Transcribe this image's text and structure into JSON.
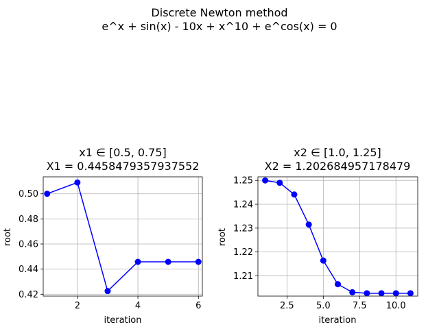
{
  "figure": {
    "suptitle_line1": "Discrete Newton method",
    "suptitle_line2": "e^x + sin(x) - 10x + x^10 + e^cos(x) = 0"
  },
  "chart_data": [
    {
      "type": "line",
      "title_line1": "x1 ∈ [0.5, 0.75]",
      "title_line2": "X1 = 0.4458479357937552",
      "xlabel": "iteration",
      "ylabel": "root",
      "xlim": [
        0.87,
        6.13
      ],
      "ylim": [
        0.4185,
        0.5135
      ],
      "xticks": [
        2,
        4,
        6
      ],
      "xtick_labels": [
        "2",
        "4",
        "6"
      ],
      "yticks": [
        0.42,
        0.44,
        0.46,
        0.48,
        0.5
      ],
      "ytick_labels": [
        "0.42",
        "0.44",
        "0.46",
        "0.48",
        "0.50"
      ],
      "grid": true,
      "color": "#0000ff",
      "marker": "circle",
      "x": [
        1,
        2,
        3,
        4,
        5,
        6
      ],
      "y": [
        0.5,
        0.509,
        0.4225,
        0.4458,
        0.4458,
        0.4458
      ]
    },
    {
      "type": "line",
      "title_line1": "x2 ∈ [1.0, 1.25]",
      "title_line2": "X2 = 1.202684957178479",
      "xlabel": "iteration",
      "ylabel": "root",
      "xlim": [
        0.5,
        11.5
      ],
      "ylim": [
        1.2015,
        1.2515
      ],
      "xticks": [
        2.5,
        5.0,
        7.5,
        10.0
      ],
      "xtick_labels": [
        "2.5",
        "5.0",
        "7.5",
        "10.0"
      ],
      "yticks": [
        1.21,
        1.22,
        1.23,
        1.24,
        1.25
      ],
      "ytick_labels": [
        "1.21",
        "1.22",
        "1.23",
        "1.24",
        "1.25"
      ],
      "grid": true,
      "color": "#0000ff",
      "marker": "circle",
      "x": [
        1,
        2,
        3,
        4,
        5,
        6,
        7,
        8,
        9,
        10,
        11
      ],
      "y": [
        1.25,
        1.249,
        1.2441,
        1.2315,
        1.2164,
        1.2065,
        1.2031,
        1.2027,
        1.2027,
        1.2027,
        1.2027
      ]
    }
  ]
}
